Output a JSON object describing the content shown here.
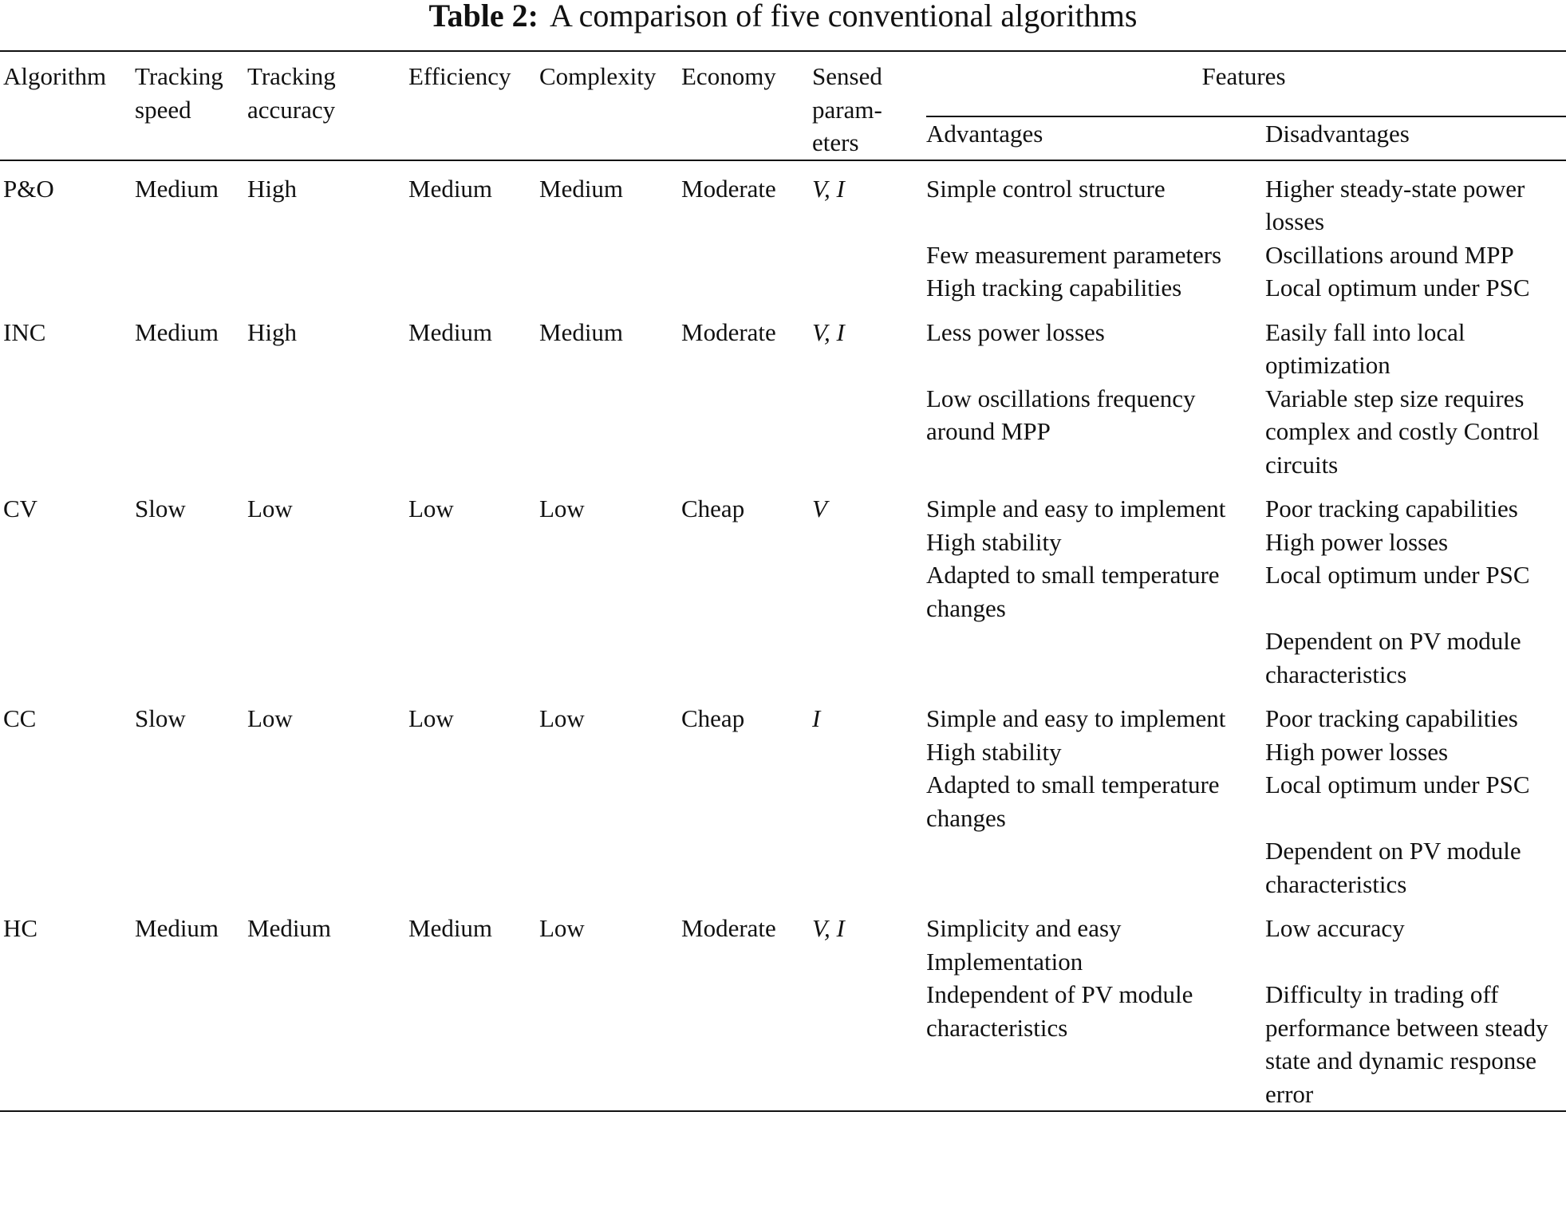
{
  "title": {
    "label": "Table 2:",
    "text": "A comparison of five conventional algorithms"
  },
  "table": {
    "headers": [
      "Algorithm",
      "Tracking speed",
      "Tracking accuracy",
      "Efficiency",
      "Complexity",
      "Economy",
      "Sensed param-eters"
    ],
    "features_header": "Features",
    "features_subheaders": [
      "Advantages",
      "Disadvantages"
    ],
    "rows": [
      {
        "cells": [
          "P&O",
          "Medium",
          "High",
          "Medium",
          "Medium",
          "Moderate",
          "V, I"
        ],
        "features": [
          {
            "advantage": "Simple control structure",
            "disadvantage": "Higher steady-state power losses"
          },
          {
            "advantage": "Few measurement parameters",
            "disadvantage": "Oscillations around MPP"
          },
          {
            "advantage": "High tracking capabilities",
            "disadvantage": "Local optimum under PSC"
          }
        ]
      },
      {
        "cells": [
          "INC",
          "Medium",
          "High",
          "Medium",
          "Medium",
          "Moderate",
          "V, I"
        ],
        "features": [
          {
            "advantage": "Less power losses",
            "disadvantage": "Easily fall into local optimization"
          },
          {
            "advantage": "Low oscillations frequency around MPP",
            "disadvantage": "Variable step size requires complex and costly Control circuits"
          }
        ]
      },
      {
        "cells": [
          "CV",
          "Slow",
          "Low",
          "Low",
          "Low",
          "Cheap",
          "V"
        ],
        "features": [
          {
            "advantage": "Simple and easy to implement",
            "disadvantage": "Poor tracking capabilities"
          },
          {
            "advantage": "High stability",
            "disadvantage": "High power losses"
          },
          {
            "advantage": "Adapted to small temperature changes",
            "disadvantage": "Local optimum under PSC"
          },
          {
            "disadvantage": "Dependent on PV module characteristics"
          }
        ]
      },
      {
        "cells": [
          "CC",
          "Slow",
          "Low",
          "Low",
          "Low",
          "Cheap",
          "I"
        ],
        "features": [
          {
            "advantage": "Simple and easy to implement",
            "disadvantage": "Poor tracking capabilities"
          },
          {
            "advantage": "High stability",
            "disadvantage": "High power losses"
          },
          {
            "advantage": "Adapted to small temperature changes",
            "disadvantage": "Local optimum under PSC"
          },
          {
            "disadvantage": "Dependent on PV module characteristics"
          }
        ]
      },
      {
        "cells": [
          "HC",
          "Medium",
          "Medium",
          "Medium",
          "Low",
          "Moderate",
          "V, I"
        ],
        "features": [
          {
            "advantage": "Simplicity and easy Implementation",
            "disadvantage": "Low accuracy"
          },
          {
            "advantage": "Independent of PV module characteristics",
            "disadvantage": "Difficulty in trading off performance between steady state and dynamic response error"
          }
        ]
      }
    ]
  }
}
